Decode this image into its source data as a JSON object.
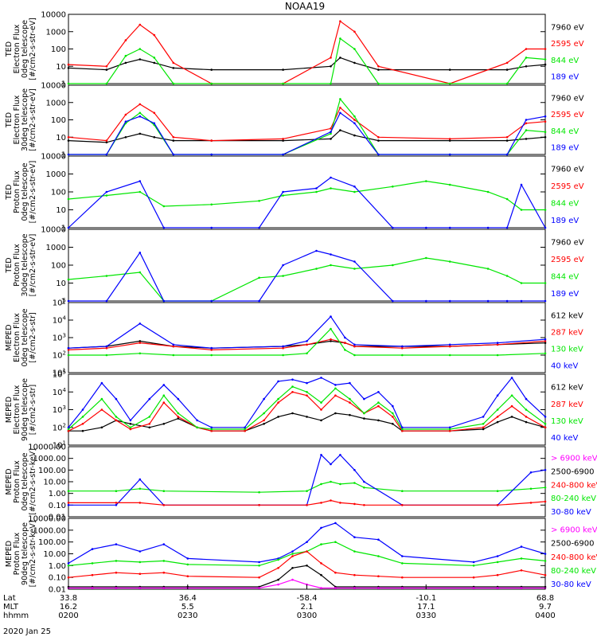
{
  "title": "NOAA19",
  "date_label": "2020 Jan 25",
  "footer": {
    "rows": [
      "Lat",
      "MLT",
      "hhmm"
    ],
    "ticks": [
      {
        "lat": "33.8",
        "mlt": "16.2",
        "hhmm": "0200"
      },
      {
        "lat": "36.4",
        "mlt": "5.5",
        "hhmm": "0230"
      },
      {
        "lat": "-58.4",
        "mlt": "2.1",
        "hhmm": "0300"
      },
      {
        "lat": "-10.1",
        "mlt": "17.1",
        "hhmm": "0330"
      },
      {
        "lat": "68.8",
        "mlt": "9.7",
        "hhmm": "0400"
      }
    ]
  },
  "colors": {
    "black": "#000000",
    "red": "#ff0000",
    "green": "#00e600",
    "blue": "#0000ff",
    "magenta": "#ff00ff"
  },
  "chart_data": [
    {
      "type": "line",
      "ylabel": [
        "TED",
        "Electron Flux",
        "0deg telescope",
        "[#/cm2-s-str-eV]"
      ],
      "yticks": [
        "10000",
        "1000",
        "100",
        "10",
        "1"
      ],
      "log_range": [
        0,
        4
      ],
      "legend": [
        {
          "label": "7960 eV",
          "color": "black"
        },
        {
          "label": "2595 eV",
          "color": "red"
        },
        {
          "label": "844 eV",
          "color": "green"
        },
        {
          "label": "189 eV",
          "color": "blue"
        }
      ],
      "x": [
        0.0,
        0.08,
        0.12,
        0.15,
        0.18,
        0.22,
        0.3,
        0.45,
        0.55,
        0.57,
        0.6,
        0.65,
        0.8,
        0.92,
        0.96,
        1.0
      ],
      "series": [
        {
          "color": "black",
          "values": [
            0.9,
            0.8,
            1.2,
            1.4,
            1.2,
            0.9,
            0.8,
            0.8,
            1.0,
            1.5,
            1.2,
            0.8,
            0.8,
            0.8,
            1.0,
            1.1
          ]
        },
        {
          "color": "red",
          "values": [
            1.1,
            1.0,
            2.5,
            3.4,
            2.8,
            1.2,
            0.0,
            0.0,
            1.5,
            3.6,
            3.0,
            1.0,
            0.0,
            1.2,
            2.0,
            2.0
          ]
        },
        {
          "color": "green",
          "values": [
            0.0,
            0.0,
            1.6,
            2.0,
            1.5,
            0.0,
            0.0,
            0.0,
            0.0,
            2.6,
            2.0,
            0.0,
            0.0,
            0.0,
            1.5,
            1.4
          ]
        }
      ]
    },
    {
      "type": "line",
      "ylabel": [
        "TED",
        "Electron Flux",
        "30deg telescope",
        "[#/cm2-s-str-eV]"
      ],
      "yticks": [
        "10000",
        "1000",
        "100",
        "10",
        "1"
      ],
      "log_range": [
        0,
        4
      ],
      "legend": [
        {
          "label": "7960 eV",
          "color": "black"
        },
        {
          "label": "2595 eV",
          "color": "red"
        },
        {
          "label": "844 eV",
          "color": "green"
        },
        {
          "label": "189 eV",
          "color": "blue"
        }
      ],
      "x": [
        0.0,
        0.08,
        0.12,
        0.15,
        0.18,
        0.22,
        0.3,
        0.45,
        0.55,
        0.57,
        0.6,
        0.65,
        0.8,
        0.92,
        0.96,
        1.0
      ],
      "series": [
        {
          "color": "black",
          "values": [
            0.8,
            0.7,
            1.0,
            1.2,
            1.0,
            0.8,
            0.8,
            0.8,
            0.9,
            1.4,
            1.1,
            0.8,
            0.8,
            0.8,
            0.9,
            1.0
          ]
        },
        {
          "color": "red",
          "values": [
            1.0,
            0.8,
            2.3,
            2.9,
            2.4,
            1.0,
            0.8,
            0.9,
            1.5,
            2.7,
            2.0,
            1.0,
            0.9,
            1.0,
            1.8,
            1.9
          ]
        },
        {
          "color": "green",
          "values": [
            0.0,
            0.0,
            1.8,
            2.4,
            1.7,
            0.0,
            0.0,
            0.0,
            1.2,
            3.2,
            2.2,
            0.0,
            0.0,
            0.0,
            1.4,
            1.3
          ]
        },
        {
          "color": "blue",
          "values": [
            0.0,
            0.0,
            1.9,
            2.2,
            1.8,
            0.0,
            0.0,
            0.0,
            1.3,
            2.4,
            1.8,
            0.0,
            0.0,
            0.0,
            2.0,
            2.2
          ]
        }
      ]
    },
    {
      "type": "line",
      "ylabel": [
        "TED",
        "Proton Flux",
        "0deg telescope",
        "[#/cm2-s-str-eV]"
      ],
      "yticks": [
        "10000",
        "1000",
        "100",
        "10",
        "1"
      ],
      "log_range": [
        0,
        4
      ],
      "legend": [
        {
          "label": "7960 eV",
          "color": "black"
        },
        {
          "label": "2595 eV",
          "color": "red"
        },
        {
          "label": "844 eV",
          "color": "green"
        },
        {
          "label": "189 eV",
          "color": "blue"
        }
      ],
      "x": [
        0.0,
        0.08,
        0.15,
        0.2,
        0.3,
        0.4,
        0.45,
        0.52,
        0.55,
        0.6,
        0.68,
        0.75,
        0.8,
        0.88,
        0.92,
        0.95,
        1.0
      ],
      "series": [
        {
          "color": "green",
          "values": [
            1.6,
            1.8,
            2.0,
            1.2,
            1.3,
            1.5,
            1.8,
            2.0,
            2.2,
            2.0,
            2.3,
            2.6,
            2.4,
            2.0,
            1.6,
            1.0,
            1.0
          ]
        },
        {
          "color": "blue",
          "values": [
            0.0,
            2.0,
            2.6,
            0.0,
            0.0,
            0.0,
            2.0,
            2.2,
            2.8,
            2.3,
            0.0,
            0.0,
            0.0,
            0.0,
            0.0,
            2.4,
            0.0
          ]
        }
      ]
    },
    {
      "type": "line",
      "ylabel": [
        "TED",
        "Proton Flux",
        "30deg telescope",
        "[#/cm2-s-str-eV]"
      ],
      "yticks": [
        "10000",
        "1000",
        "100",
        "10",
        "1"
      ],
      "log_range": [
        0,
        4
      ],
      "legend": [
        {
          "label": "7960 eV",
          "color": "black"
        },
        {
          "label": "2595 eV",
          "color": "red"
        },
        {
          "label": "844 eV",
          "color": "green"
        },
        {
          "label": "189 eV",
          "color": "blue"
        }
      ],
      "x": [
        0.0,
        0.08,
        0.15,
        0.2,
        0.3,
        0.4,
        0.45,
        0.52,
        0.55,
        0.6,
        0.68,
        0.75,
        0.8,
        0.88,
        0.92,
        0.95,
        1.0
      ],
      "series": [
        {
          "color": "green",
          "values": [
            1.2,
            1.4,
            1.6,
            0.0,
            0.0,
            1.3,
            1.4,
            1.8,
            2.0,
            1.8,
            2.0,
            2.4,
            2.2,
            1.8,
            1.4,
            1.0,
            1.0
          ]
        },
        {
          "color": "blue",
          "values": [
            0.0,
            0.0,
            2.7,
            0.0,
            0.0,
            0.0,
            2.0,
            2.8,
            2.6,
            2.2,
            0.0,
            0.0,
            0.0,
            0.0,
            0.0,
            0.0,
            0.0
          ]
        }
      ]
    },
    {
      "type": "line",
      "ylabel": [
        "MEPED",
        "Electron Flux",
        "0deg telescope",
        "[#/cm2-s-str]"
      ],
      "yticks": [
        "10^5",
        "10^4",
        "10^3",
        "10^2",
        "10^1"
      ],
      "log_range": [
        1,
        5
      ],
      "legend": [
        {
          "label": "612 keV",
          "color": "black"
        },
        {
          "label": "287 keV",
          "color": "red"
        },
        {
          "label": "130 keV",
          "color": "green"
        },
        {
          "label": "40 keV",
          "color": "blue"
        }
      ],
      "x": [
        0.0,
        0.08,
        0.15,
        0.22,
        0.3,
        0.45,
        0.5,
        0.55,
        0.58,
        0.6,
        0.7,
        0.8,
        0.9,
        1.0
      ],
      "series": [
        {
          "color": "black",
          "values": [
            2.4,
            2.5,
            2.8,
            2.5,
            2.4,
            2.5,
            2.6,
            2.8,
            2.7,
            2.5,
            2.5,
            2.5,
            2.6,
            2.7
          ]
        },
        {
          "color": "red",
          "values": [
            2.3,
            2.4,
            2.7,
            2.5,
            2.3,
            2.4,
            2.6,
            2.9,
            2.7,
            2.5,
            2.4,
            2.5,
            2.6,
            2.8
          ]
        },
        {
          "color": "green",
          "values": [
            2.0,
            2.0,
            2.1,
            2.0,
            2.0,
            2.0,
            2.1,
            3.5,
            2.3,
            2.0,
            2.0,
            2.0,
            2.0,
            2.1
          ]
        },
        {
          "color": "blue",
          "values": [
            2.4,
            2.5,
            3.8,
            2.6,
            2.4,
            2.5,
            2.8,
            4.2,
            3.0,
            2.6,
            2.5,
            2.6,
            2.7,
            2.9
          ]
        }
      ]
    },
    {
      "type": "line",
      "ylabel": [
        "MEPED",
        "Electron Flux",
        "90deg telescope",
        "[#/cm2-s-str]"
      ],
      "yticks": [
        "10^5",
        "10^4",
        "10^3",
        "10^2",
        "10^1"
      ],
      "log_range": [
        1,
        5
      ],
      "legend": [
        {
          "label": "612 keV",
          "color": "black"
        },
        {
          "label": "287 keV",
          "color": "red"
        },
        {
          "label": "130 keV",
          "color": "green"
        },
        {
          "label": "40 keV",
          "color": "blue"
        }
      ],
      "x": [
        0.0,
        0.03,
        0.07,
        0.1,
        0.13,
        0.17,
        0.2,
        0.23,
        0.27,
        0.3,
        0.37,
        0.41,
        0.44,
        0.47,
        0.5,
        0.53,
        0.56,
        0.59,
        0.62,
        0.65,
        0.68,
        0.7,
        0.8,
        0.87,
        0.9,
        0.93,
        0.96,
        1.0
      ],
      "series": [
        {
          "color": "black",
          "values": [
            1.8,
            1.8,
            2.0,
            2.4,
            2.2,
            2.0,
            2.2,
            2.5,
            2.0,
            1.8,
            1.8,
            2.2,
            2.6,
            2.8,
            2.6,
            2.4,
            2.8,
            2.7,
            2.5,
            2.4,
            2.2,
            1.8,
            1.8,
            1.9,
            2.3,
            2.6,
            2.3,
            2.0
          ]
        },
        {
          "color": "red",
          "values": [
            1.8,
            2.2,
            3.0,
            2.4,
            1.9,
            2.2,
            3.4,
            2.6,
            2.0,
            1.8,
            1.8,
            2.4,
            3.4,
            4.0,
            3.8,
            3.0,
            3.8,
            3.4,
            2.8,
            3.2,
            2.6,
            1.8,
            1.8,
            2.0,
            2.6,
            3.2,
            2.6,
            2.0
          ]
        },
        {
          "color": "green",
          "values": [
            1.9,
            2.6,
            3.6,
            2.6,
            2.0,
            2.6,
            3.8,
            2.8,
            2.0,
            1.9,
            1.9,
            2.8,
            3.6,
            4.3,
            4.0,
            3.4,
            4.2,
            3.6,
            2.8,
            3.4,
            2.8,
            1.9,
            1.9,
            2.2,
            3.0,
            3.8,
            3.0,
            2.2
          ]
        },
        {
          "color": "blue",
          "values": [
            2.0,
            3.0,
            4.5,
            3.6,
            2.4,
            3.6,
            4.4,
            3.6,
            2.4,
            2.0,
            2.0,
            3.6,
            4.6,
            4.7,
            4.5,
            4.8,
            4.4,
            4.5,
            3.6,
            4.0,
            3.2,
            2.0,
            2.0,
            2.6,
            3.8,
            4.8,
            3.6,
            2.6
          ]
        }
      ]
    },
    {
      "type": "line",
      "ylabel": [
        "MEPED",
        "Proton Flux",
        "0deg telescope",
        "[#/cm2-s-str-keV]"
      ],
      "yticks": [
        "10000.00",
        "1000.00",
        "100.00",
        "10.00",
        "1.00",
        "0.10",
        "0.01"
      ],
      "log_range": [
        -2,
        4
      ],
      "legend": [
        {
          "label": "> 6900 keV",
          "color": "magenta"
        },
        {
          "label": "2500-6900",
          "color": "black"
        },
        {
          "label": "240-800 keV",
          "color": "red"
        },
        {
          "label": "80-240 keV",
          "color": "green"
        },
        {
          "label": "30-80 keV",
          "color": "blue"
        }
      ],
      "x": [
        0.0,
        0.1,
        0.15,
        0.2,
        0.4,
        0.5,
        0.53,
        0.55,
        0.57,
        0.6,
        0.62,
        0.7,
        0.9,
        0.97,
        1.0
      ],
      "series": [
        {
          "color": "green",
          "values": [
            0.2,
            0.2,
            0.4,
            0.2,
            0.1,
            0.2,
            0.8,
            1.0,
            0.8,
            0.9,
            0.5,
            0.2,
            0.2,
            0.4,
            0.5
          ]
        },
        {
          "color": "blue",
          "values": [
            -1.0,
            -1.0,
            1.2,
            -1.0,
            -1.0,
            -1.0,
            3.3,
            2.5,
            3.3,
            2.0,
            1.0,
            -1.0,
            -1.0,
            1.8,
            2.0
          ]
        },
        {
          "color": "red",
          "values": [
            -0.8,
            -0.8,
            -0.8,
            -1.0,
            -1.0,
            -1.0,
            -0.8,
            -0.6,
            -0.8,
            -0.9,
            -1.0,
            -1.0,
            -1.0,
            -0.8,
            -0.7
          ]
        }
      ]
    },
    {
      "type": "line",
      "ylabel": [
        "MEPED",
        "Proton Flux",
        "90deg telescope",
        "[#/cm2-s-str-keV]"
      ],
      "yticks": [
        "10000.00",
        "1000.00",
        "100.00",
        "10.00",
        "1.00",
        "0.10",
        "0.01"
      ],
      "log_range": [
        -2,
        4
      ],
      "legend": [
        {
          "label": "> 6900 keV",
          "color": "magenta"
        },
        {
          "label": "2500-6900",
          "color": "black"
        },
        {
          "label": "240-800 keV",
          "color": "red"
        },
        {
          "label": "80-240 keV",
          "color": "green"
        },
        {
          "label": "30-80 keV",
          "color": "blue"
        }
      ],
      "x": [
        0.0,
        0.05,
        0.1,
        0.15,
        0.2,
        0.25,
        0.4,
        0.44,
        0.47,
        0.5,
        0.53,
        0.56,
        0.6,
        0.65,
        0.7,
        0.85,
        0.9,
        0.95,
        1.0
      ],
      "series": [
        {
          "color": "blue",
          "values": [
            0.2,
            1.4,
            1.8,
            1.2,
            1.8,
            0.6,
            0.3,
            0.6,
            1.2,
            2.0,
            3.2,
            3.6,
            2.4,
            2.2,
            0.8,
            0.3,
            0.8,
            1.6,
            1.0
          ]
        },
        {
          "color": "green",
          "values": [
            0.0,
            0.2,
            0.4,
            0.3,
            0.4,
            0.1,
            0.0,
            0.5,
            1.0,
            1.2,
            1.8,
            2.0,
            1.2,
            0.8,
            0.2,
            0.0,
            0.3,
            0.6,
            0.4
          ]
        },
        {
          "color": "red",
          "values": [
            -1.0,
            -0.8,
            -0.6,
            -0.7,
            -0.6,
            -0.9,
            -1.0,
            -0.2,
            0.8,
            1.2,
            0.2,
            -0.6,
            -0.8,
            -0.9,
            -1.0,
            -1.0,
            -0.8,
            -0.4,
            -0.8
          ]
        },
        {
          "color": "black",
          "values": [
            -1.8,
            -1.8,
            -1.8,
            -1.8,
            -1.8,
            -1.8,
            -1.8,
            -1.2,
            -0.2,
            0.0,
            -0.8,
            -1.8,
            -1.8,
            -1.8,
            -1.8,
            -1.8,
            -1.8,
            -1.8,
            -1.8
          ]
        },
        {
          "color": "magenta",
          "values": [
            -1.9,
            -1.9,
            -1.9,
            -1.9,
            -1.9,
            -1.9,
            -1.9,
            -1.6,
            -1.2,
            -1.6,
            -1.9,
            -1.9,
            -1.9,
            -1.9,
            -1.9,
            -1.9,
            -1.9,
            -1.9,
            -1.9
          ]
        }
      ]
    }
  ]
}
